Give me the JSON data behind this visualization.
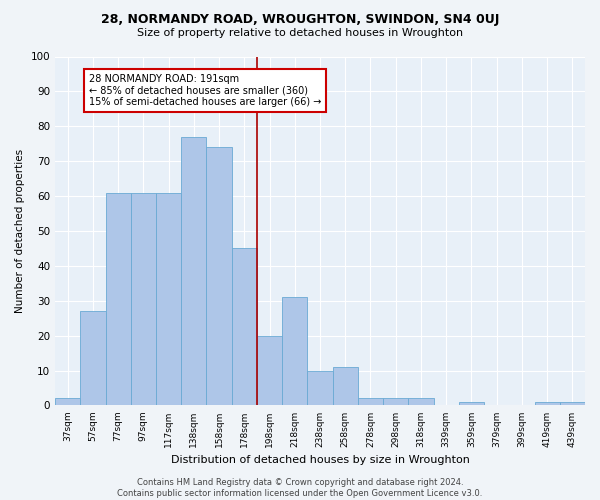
{
  "title1": "28, NORMANDY ROAD, WROUGHTON, SWINDON, SN4 0UJ",
  "title2": "Size of property relative to detached houses in Wroughton",
  "xlabel": "Distribution of detached houses by size in Wroughton",
  "ylabel": "Number of detached properties",
  "bin_labels": [
    "37sqm",
    "57sqm",
    "77sqm",
    "97sqm",
    "117sqm",
    "138sqm",
    "158sqm",
    "178sqm",
    "198sqm",
    "218sqm",
    "238sqm",
    "258sqm",
    "278sqm",
    "298sqm",
    "318sqm",
    "339sqm",
    "359sqm",
    "379sqm",
    "399sqm",
    "419sqm",
    "439sqm"
  ],
  "bar_heights": [
    2,
    27,
    61,
    61,
    61,
    77,
    74,
    45,
    20,
    31,
    10,
    11,
    2,
    2,
    2,
    0,
    1,
    0,
    0,
    1,
    1
  ],
  "bar_color": "#aec6e8",
  "bar_edge_color": "#6aaad4",
  "bg_color": "#e8f0f8",
  "grid_color": "#ffffff",
  "vline_color": "#aa0000",
  "annotation_box_text": "28 NORMANDY ROAD: 191sqm\n← 85% of detached houses are smaller (360)\n15% of semi-detached houses are larger (66) →",
  "annotation_box_color": "#cc0000",
  "footnote": "Contains HM Land Registry data © Crown copyright and database right 2024.\nContains public sector information licensed under the Open Government Licence v3.0.",
  "ylim": [
    0,
    100
  ],
  "yticks": [
    0,
    10,
    20,
    30,
    40,
    50,
    60,
    70,
    80,
    90,
    100
  ],
  "fig_bg": "#f0f4f8"
}
